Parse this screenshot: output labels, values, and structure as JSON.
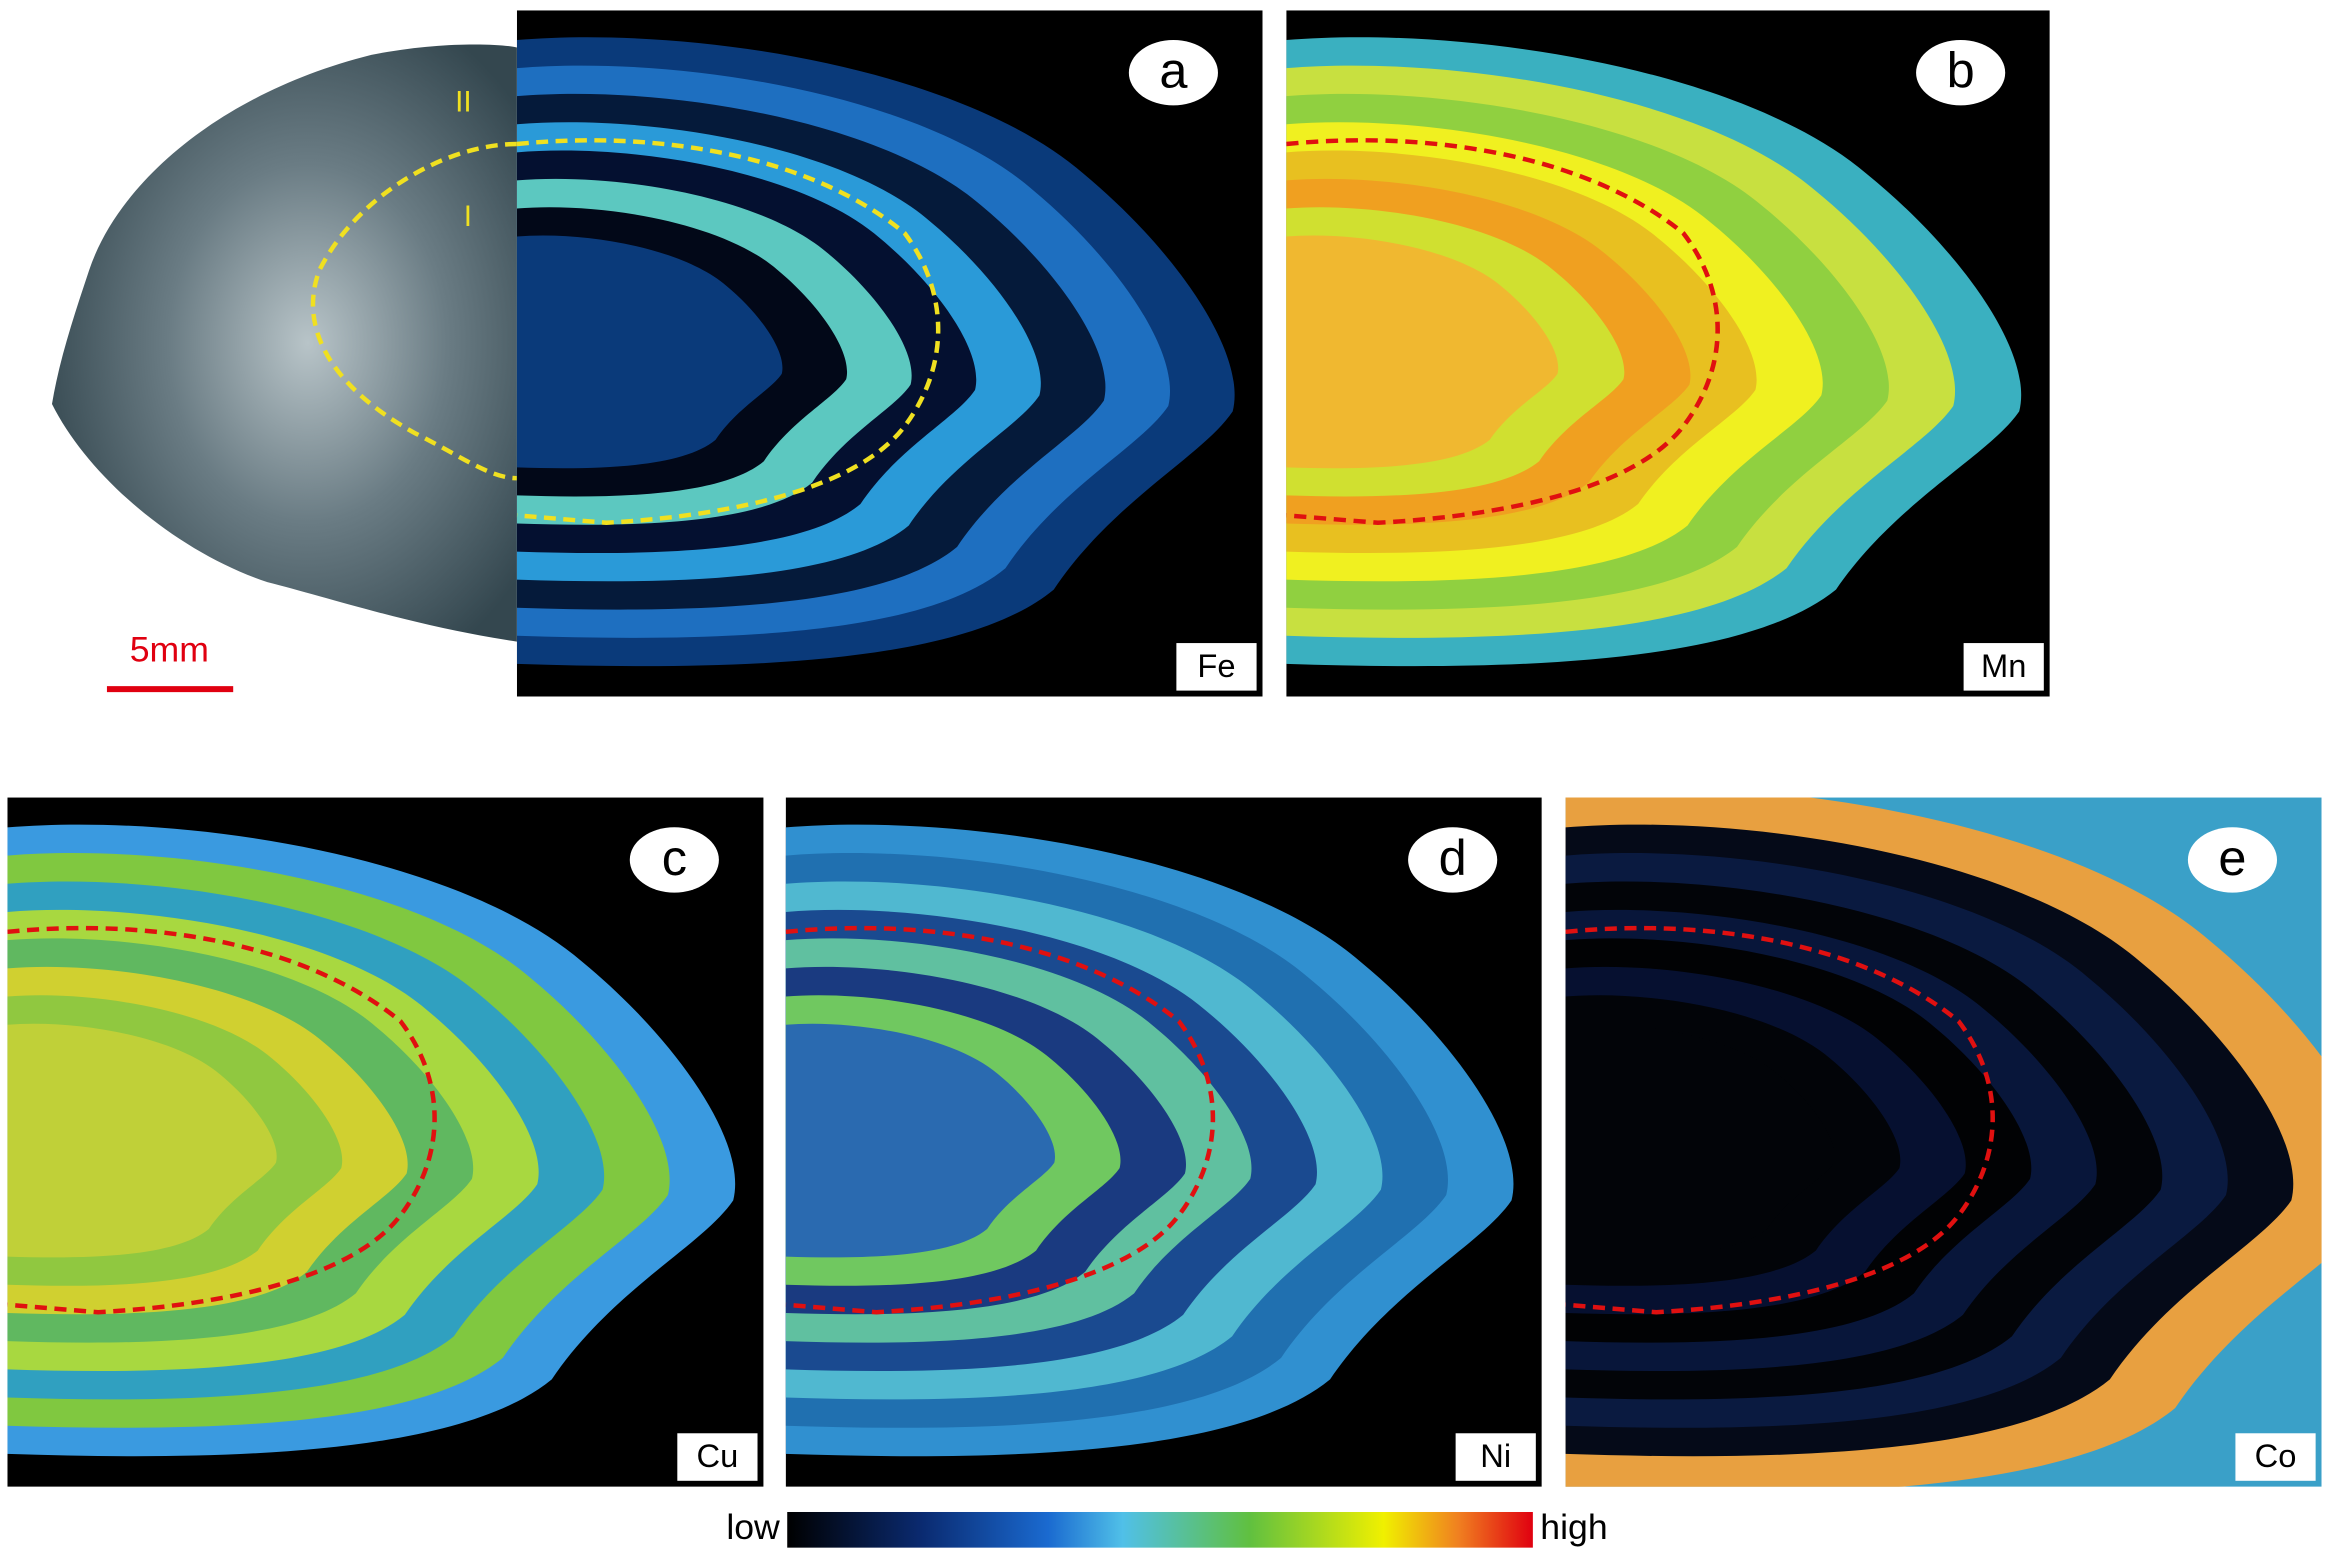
{
  "photo": {
    "zone_labels": [
      "II",
      "I"
    ],
    "scale_bar": "5mm"
  },
  "panels": [
    {
      "letter": "a",
      "element": "Fe"
    },
    {
      "letter": "b",
      "element": "Mn"
    },
    {
      "letter": "c",
      "element": "Cu"
    },
    {
      "letter": "d",
      "element": "Ni"
    },
    {
      "letter": "e",
      "element": "Co"
    }
  ],
  "colorbar": {
    "low": "low",
    "high": "high"
  }
}
